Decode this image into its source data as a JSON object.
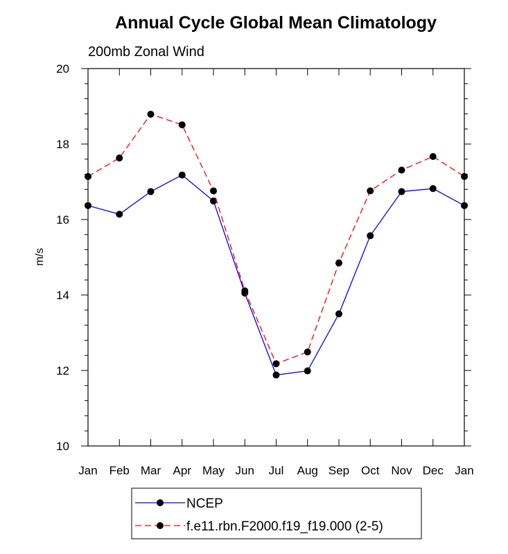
{
  "chart_data": {
    "type": "line",
    "title": "Annual Cycle Global Mean Climatology",
    "subtitle": "200mb Zonal Wind",
    "ylabel": "m/s",
    "xlabel": "",
    "categories": [
      "Jan",
      "Feb",
      "Mar",
      "Apr",
      "May",
      "Jun",
      "Jul",
      "Aug",
      "Sep",
      "Oct",
      "Nov",
      "Dec",
      "Jan"
    ],
    "ylim": [
      10,
      20
    ],
    "yticks": [
      10,
      12,
      14,
      16,
      18,
      20
    ],
    "grid": false,
    "legend_position": "bottom",
    "series": [
      {
        "name": "NCEP",
        "color": "#0000ff",
        "dash": "solid",
        "values": [
          16.37,
          16.14,
          16.74,
          17.18,
          16.49,
          14.05,
          11.88,
          11.99,
          13.5,
          15.57,
          16.74,
          16.82,
          16.37
        ]
      },
      {
        "name": "f.e11.rbn.F2000.f19_f19.000 (2-5)",
        "color": "#ff0000",
        "dash": "dashed",
        "values": [
          17.14,
          17.63,
          18.79,
          18.51,
          16.76,
          14.11,
          12.18,
          12.49,
          14.85,
          16.76,
          17.31,
          17.67,
          17.14
        ]
      }
    ]
  }
}
